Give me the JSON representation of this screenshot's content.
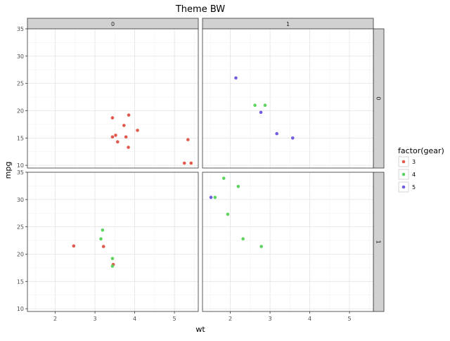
{
  "chart_data": {
    "type": "scatter",
    "title": "Theme BW",
    "xlabel": "wt",
    "ylabel": "mpg",
    "xlim": [
      1.3,
      5.6
    ],
    "ylim": [
      9.5,
      35
    ],
    "x_ticks": [
      2,
      3,
      4,
      5
    ],
    "y_ticks": [
      10,
      15,
      20,
      25,
      30,
      35
    ],
    "grid": true,
    "facet_cols": [
      "0",
      "1"
    ],
    "facet_rows": [
      "0",
      "1"
    ],
    "legend": {
      "title": "factor(gear)",
      "placement": "right",
      "entries": [
        {
          "label": "3",
          "color": "#e05a4e"
        },
        {
          "label": "4",
          "color": "#5fd35f"
        },
        {
          "label": "5",
          "color": "#6e5ee0"
        }
      ]
    },
    "panels": [
      {
        "col": "0",
        "row": "0",
        "points": [
          {
            "x": 3.44,
            "y": 18.7,
            "gear": "3"
          },
          {
            "x": 3.57,
            "y": 14.3,
            "gear": "3"
          },
          {
            "x": 4.07,
            "y": 16.4,
            "gear": "3"
          },
          {
            "x": 3.73,
            "y": 17.3,
            "gear": "3"
          },
          {
            "x": 3.78,
            "y": 15.2,
            "gear": "3"
          },
          {
            "x": 5.25,
            "y": 10.4,
            "gear": "3"
          },
          {
            "x": 5.42,
            "y": 10.4,
            "gear": "3"
          },
          {
            "x": 5.34,
            "y": 14.7,
            "gear": "3"
          },
          {
            "x": 3.52,
            "y": 15.5,
            "gear": "3"
          },
          {
            "x": 3.44,
            "y": 15.2,
            "gear": "3"
          },
          {
            "x": 3.84,
            "y": 13.3,
            "gear": "3"
          },
          {
            "x": 3.85,
            "y": 19.2,
            "gear": "3"
          }
        ]
      },
      {
        "col": "1",
        "row": "0",
        "points": [
          {
            "x": 2.62,
            "y": 21.0,
            "gear": "4"
          },
          {
            "x": 2.875,
            "y": 21.0,
            "gear": "4"
          },
          {
            "x": 2.14,
            "y": 26.0,
            "gear": "5"
          },
          {
            "x": 2.77,
            "y": 19.7,
            "gear": "5"
          },
          {
            "x": 3.17,
            "y": 15.8,
            "gear": "5"
          },
          {
            "x": 3.57,
            "y": 15.0,
            "gear": "5"
          }
        ]
      },
      {
        "col": "0",
        "row": "1",
        "points": [
          {
            "x": 2.465,
            "y": 21.5,
            "gear": "3"
          },
          {
            "x": 3.215,
            "y": 21.4,
            "gear": "3"
          },
          {
            "x": 3.46,
            "y": 18.1,
            "gear": "3"
          },
          {
            "x": 3.19,
            "y": 24.4,
            "gear": "4"
          },
          {
            "x": 3.15,
            "y": 22.8,
            "gear": "4"
          },
          {
            "x": 3.44,
            "y": 19.2,
            "gear": "4"
          },
          {
            "x": 3.44,
            "y": 17.8,
            "gear": "4"
          }
        ]
      },
      {
        "col": "1",
        "row": "1",
        "points": [
          {
            "x": 2.32,
            "y": 22.8,
            "gear": "4"
          },
          {
            "x": 2.2,
            "y": 32.4,
            "gear": "4"
          },
          {
            "x": 1.615,
            "y": 30.4,
            "gear": "4"
          },
          {
            "x": 1.835,
            "y": 33.9,
            "gear": "4"
          },
          {
            "x": 1.935,
            "y": 27.3,
            "gear": "4"
          },
          {
            "x": 2.78,
            "y": 21.4,
            "gear": "4"
          },
          {
            "x": 1.513,
            "y": 30.4,
            "gear": "5"
          }
        ]
      }
    ]
  }
}
